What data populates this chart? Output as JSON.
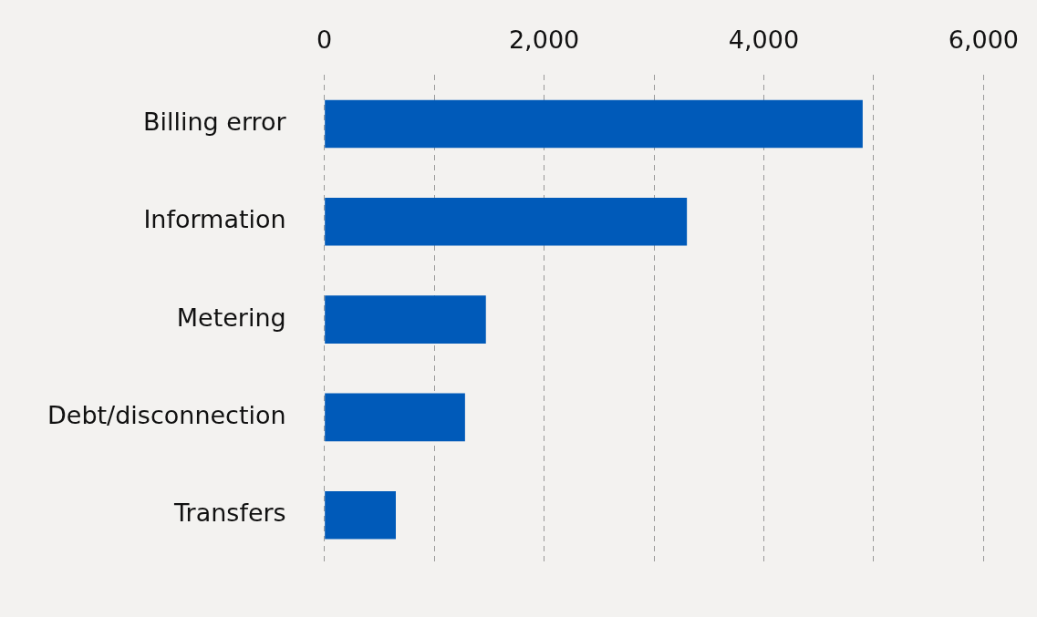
{
  "chart_data": {
    "type": "bar",
    "orientation": "horizontal",
    "categories": [
      "Billing error",
      "Information",
      "Metering",
      "Debt/disconnection",
      "Transfers"
    ],
    "values": [
      4900,
      3300,
      1470,
      1280,
      650
    ],
    "color": "#005ab9",
    "xlim": [
      0,
      6000
    ],
    "xticks": [
      0,
      {
        "value": 1000,
        "label": null
      },
      {
        "value": 2000,
        "label": "2,000"
      },
      {
        "value": 3000,
        "label": null
      },
      {
        "value": 4000,
        "label": "4,000"
      },
      {
        "value": 5000,
        "label": null
      },
      {
        "value": 6000,
        "label": "6,000"
      }
    ],
    "grid": "x"
  }
}
